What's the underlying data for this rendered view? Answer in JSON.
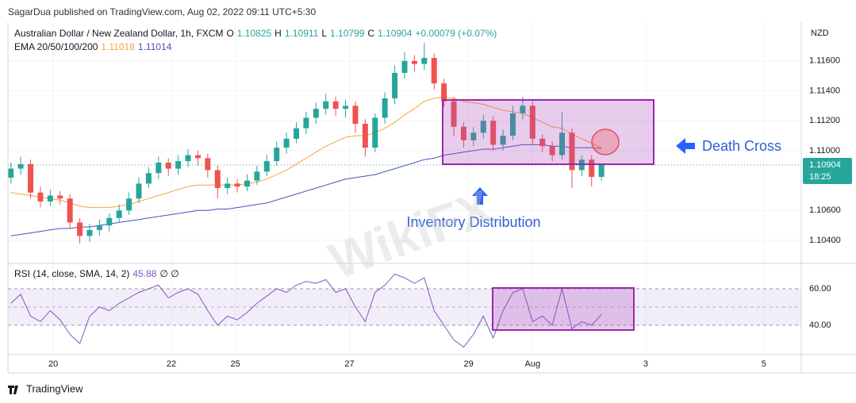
{
  "header": {
    "publisher": "SagarDua published on TradingView.com, Aug 02, 2022 09:11 UTC+5:30",
    "brand": "TradingView",
    "watermark": "WikiFX"
  },
  "chart_data": [
    {
      "type": "candlestick",
      "title": "Australian Dollar / New Zealand Dollar, 1h, FXCM",
      "currency": "NZD",
      "ohlc_labels": [
        "O",
        "H",
        "L",
        "C"
      ],
      "change": "+0.00079 (+0.07%)",
      "indicator_label": "EMA 20/50/100/200",
      "countdown": "18:25",
      "annotations": {
        "death_cross": "Death Cross",
        "inventory": "Inventory Distribution"
      },
      "up_color": "#26a69a",
      "down_color": "#ef5350",
      "x": [
        0,
        1,
        2,
        3,
        4,
        5,
        6,
        7,
        8,
        9,
        10,
        11,
        12,
        13,
        14,
        15,
        16,
        17,
        18,
        19,
        20,
        21,
        22,
        23,
        24,
        25,
        26,
        27,
        28,
        29,
        30,
        31,
        32,
        33,
        34,
        35,
        36,
        37,
        38,
        39,
        40,
        41,
        42,
        43,
        44,
        45,
        46,
        47,
        48,
        49,
        50,
        51,
        52,
        53,
        54,
        55,
        56,
        57,
        58,
        59,
        60
      ],
      "open": [
        1.1082,
        1.1088,
        1.1091,
        1.1072,
        1.1066,
        1.107,
        1.1068,
        1.1052,
        1.1043,
        1.1047,
        1.105,
        1.1055,
        1.106,
        1.1068,
        1.1078,
        1.1085,
        1.1092,
        1.1088,
        1.1093,
        1.1097,
        1.1095,
        1.1087,
        1.1075,
        1.1078,
        1.1076,
        1.108,
        1.1086,
        1.1093,
        1.1102,
        1.1108,
        1.1115,
        1.1122,
        1.1128,
        1.1133,
        1.1128,
        1.113,
        1.1118,
        1.1102,
        1.1122,
        1.1135,
        1.1152,
        1.116,
        1.1158,
        1.1162,
        1.1145,
        1.1133,
        1.1116,
        1.1107,
        1.1112,
        1.112,
        1.1104,
        1.111,
        1.1125,
        1.113,
        1.1108,
        1.1103,
        1.1097,
        1.1112,
        1.1087,
        1.1094,
        1.10825
      ],
      "high": [
        1.1092,
        1.1096,
        1.1094,
        1.1076,
        1.1074,
        1.1073,
        1.1071,
        1.1055,
        1.1051,
        1.1054,
        1.1058,
        1.1064,
        1.1072,
        1.1082,
        1.1089,
        1.1096,
        1.1095,
        1.1097,
        1.1101,
        1.11,
        1.1098,
        1.109,
        1.1082,
        1.1081,
        1.1084,
        1.109,
        1.1097,
        1.1106,
        1.1112,
        1.1119,
        1.1126,
        1.1132,
        1.1138,
        1.1136,
        1.1134,
        1.1133,
        1.1121,
        1.1125,
        1.1139,
        1.1157,
        1.1166,
        1.1164,
        1.1172,
        1.1165,
        1.1148,
        1.1136,
        1.1119,
        1.1116,
        1.1124,
        1.1123,
        1.1114,
        1.113,
        1.1136,
        1.1133,
        1.1111,
        1.1106,
        1.1126,
        1.1115,
        1.1097,
        1.1097,
        1.10911
      ],
      "low": [
        1.1078,
        1.1084,
        1.1068,
        1.1062,
        1.1063,
        1.1064,
        1.1048,
        1.1038,
        1.1039,
        1.1043,
        1.1046,
        1.1052,
        1.1057,
        1.1065,
        1.1075,
        1.1081,
        1.1083,
        1.1084,
        1.1089,
        1.109,
        1.1082,
        1.1068,
        1.1071,
        1.1072,
        1.1073,
        1.1077,
        1.1083,
        1.109,
        1.1098,
        1.1105,
        1.1111,
        1.1118,
        1.1124,
        1.1123,
        1.1122,
        1.1112,
        1.1096,
        1.1099,
        1.1118,
        1.1131,
        1.1148,
        1.1153,
        1.1154,
        1.1141,
        1.1129,
        1.111,
        1.1102,
        1.1103,
        1.1108,
        1.11,
        1.11,
        1.1107,
        1.1121,
        1.1104,
        1.1099,
        1.1093,
        1.1094,
        1.1075,
        1.1083,
        1.1076,
        1.10799
      ],
      "close": [
        1.1088,
        1.1091,
        1.1072,
        1.1066,
        1.107,
        1.1068,
        1.1052,
        1.1043,
        1.1047,
        1.105,
        1.1055,
        1.106,
        1.1068,
        1.1078,
        1.1085,
        1.1092,
        1.1088,
        1.1093,
        1.1097,
        1.1095,
        1.1087,
        1.1075,
        1.1078,
        1.1076,
        1.108,
        1.1086,
        1.1093,
        1.1102,
        1.1108,
        1.1115,
        1.1122,
        1.1128,
        1.1133,
        1.1128,
        1.113,
        1.1118,
        1.1102,
        1.1122,
        1.1135,
        1.1152,
        1.116,
        1.1158,
        1.1162,
        1.1145,
        1.1133,
        1.1116,
        1.1107,
        1.1112,
        1.112,
        1.1104,
        1.111,
        1.1125,
        1.113,
        1.1108,
        1.1103,
        1.1097,
        1.1112,
        1.1087,
        1.1094,
        1.10825,
        1.10904
      ],
      "series": [
        {
          "color": "#f5a340",
          "values": [
            1.1072,
            1.1071,
            1.107,
            1.1069,
            1.1068,
            1.1067,
            1.1065,
            1.1063,
            1.1062,
            1.1062,
            1.1062,
            1.1063,
            1.1064,
            1.1066,
            1.1068,
            1.107,
            1.1072,
            1.1074,
            1.1076,
            1.1077,
            1.1077,
            1.1077,
            1.1077,
            1.1077,
            1.1078,
            1.1079,
            1.1081,
            1.1084,
            1.1087,
            1.1091,
            1.1095,
            1.1099,
            1.1103,
            1.1106,
            1.1109,
            1.111,
            1.111,
            1.1112,
            1.1115,
            1.1119,
            1.1124,
            1.1128,
            1.1133,
            1.1135,
            1.1136,
            1.1135,
            1.1133,
            1.1132,
            1.1131,
            1.1129,
            1.1127,
            1.1126,
            1.1125,
            1.1122,
            1.1119,
            1.1116,
            1.1115,
            1.1111,
            1.1108,
            1.1105,
            1.11018
          ]
        },
        {
          "color": "#4a4fc4",
          "values": [
            1.1043,
            1.1044,
            1.1045,
            1.1046,
            1.1047,
            1.1048,
            1.1048,
            1.1049,
            1.1049,
            1.105,
            1.1051,
            1.1052,
            1.1053,
            1.1054,
            1.1055,
            1.1056,
            1.1057,
            1.1058,
            1.1059,
            1.106,
            1.106,
            1.1061,
            1.1061,
            1.1062,
            1.1063,
            1.1064,
            1.1065,
            1.1067,
            1.1069,
            1.1071,
            1.1073,
            1.1075,
            1.1077,
            1.1079,
            1.1081,
            1.1082,
            1.1083,
            1.1084,
            1.1086,
            1.1088,
            1.109,
            1.1092,
            1.1094,
            1.1095,
            1.1097,
            1.1098,
            1.1099,
            1.11,
            1.1101,
            1.1101,
            1.1102,
            1.1103,
            1.1104,
            1.1104,
            1.1104,
            1.1103,
            1.1103,
            1.1102,
            1.1102,
            1.1102,
            1.11014
          ]
        }
      ],
      "xlim": [
        -0.3,
        80.3
      ],
      "xticks": [
        {
          "value": 4.3,
          "label": "20"
        },
        {
          "value": 16.3,
          "label": "22"
        },
        {
          "value": 22.8,
          "label": "25"
        },
        {
          "value": 34.4,
          "label": "27"
        },
        {
          "value": 46.5,
          "label": "29"
        },
        {
          "value": 53.0,
          "label": "Aug"
        },
        {
          "value": 64.5,
          "label": "3"
        },
        {
          "value": 76.5,
          "label": "5"
        }
      ],
      "ylim": [
        1.10257,
        1.11859
      ],
      "yticks": [
        {
          "value": 1.104,
          "label": "1.10400"
        },
        {
          "value": 1.106,
          "label": "1.10600"
        },
        {
          "value": 1.11,
          "label": "1.11000"
        },
        {
          "value": 1.112,
          "label": "1.11200"
        },
        {
          "value": 1.114,
          "label": "1.11400"
        },
        {
          "value": 1.116,
          "label": "1.11600"
        }
      ],
      "grid": true
    },
    {
      "type": "line",
      "title": "RSI (14, close, SMA, 14, 2)",
      "extra": "∅ ∅",
      "color": "#7e57c2",
      "band": [
        40,
        60
      ],
      "middle": 50,
      "x": [
        0,
        1,
        2,
        3,
        4,
        5,
        6,
        7,
        8,
        9,
        10,
        11,
        12,
        13,
        14,
        15,
        16,
        17,
        18,
        19,
        20,
        21,
        22,
        23,
        24,
        25,
        26,
        27,
        28,
        29,
        30,
        31,
        32,
        33,
        34,
        35,
        36,
        37,
        38,
        39,
        40,
        41,
        42,
        43,
        44,
        45,
        46,
        47,
        48,
        49,
        50,
        51,
        52,
        53,
        54,
        55,
        56,
        57,
        58,
        59,
        60
      ],
      "values": [
        52,
        57,
        45,
        42,
        48,
        43,
        35,
        30,
        45,
        50,
        48,
        52,
        55,
        58,
        60,
        62,
        55,
        58,
        60,
        57,
        48,
        40,
        45,
        43,
        47,
        52,
        56,
        60,
        58,
        62,
        64,
        63,
        65,
        58,
        60,
        50,
        42,
        58,
        62,
        68,
        66,
        63,
        66,
        48,
        40,
        32,
        28,
        35,
        45,
        33,
        48,
        58,
        60,
        42,
        45,
        40,
        60,
        38,
        42,
        40,
        45.88
      ],
      "xlim": [
        -0.3,
        80.3
      ],
      "ylim": [
        24.8,
        72.6
      ],
      "yticks": [
        {
          "value": 40,
          "label": "40.00"
        },
        {
          "value": 60,
          "label": "60.00"
        }
      ]
    }
  ]
}
